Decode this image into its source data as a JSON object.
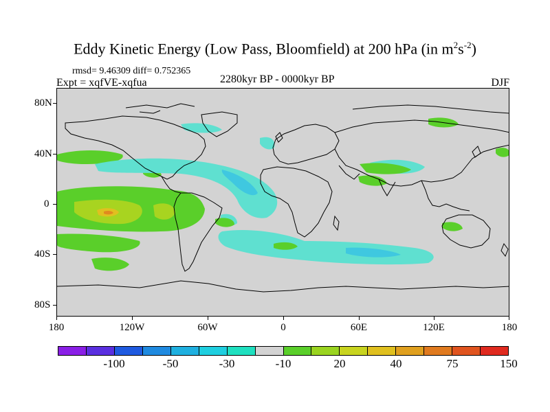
{
  "title": {
    "main": "Eddy Kinetic Energy (Low Pass, Bloomfield) at 200 hPa (in m",
    "sup1": "2",
    "mid": "s",
    "sup2": "-2",
    "close": ")"
  },
  "stats": {
    "rmsd": "rmsd= 9.46309 diff= 0.752365"
  },
  "experiment": "Expt = xqfVE-xqfua",
  "period": "2280kyr BP - 0000kyr BP",
  "season": "DJF",
  "axes": {
    "y_labels": [
      "80N",
      "40N",
      "0",
      "40S",
      "80S"
    ],
    "x_labels": [
      "180",
      "120W",
      "60W",
      "0",
      "60E",
      "120E",
      "180"
    ]
  },
  "colorbar": {
    "colors": [
      "#8a1fe6",
      "#5a2fe0",
      "#1f5ae0",
      "#1f8ae0",
      "#1fb0e0",
      "#1fcfe0",
      "#1fe0c0",
      "#d3d3d3",
      "#5acf2a",
      "#9ad420",
      "#c8d41f",
      "#e0c01f",
      "#e0a01f",
      "#e07a1f",
      "#e0541f",
      "#e02a1f"
    ],
    "labels": [
      "-100",
      "-50",
      "-30",
      "-10",
      "20",
      "40",
      "75",
      "150"
    ]
  },
  "palette": {
    "background": "#d3d3d3",
    "light_blue": "#5fe0d0",
    "blue": "#3fc8e0",
    "green": "#5acf2a",
    "yellow_green": "#a8d420",
    "orange": "#e08a1f"
  }
}
